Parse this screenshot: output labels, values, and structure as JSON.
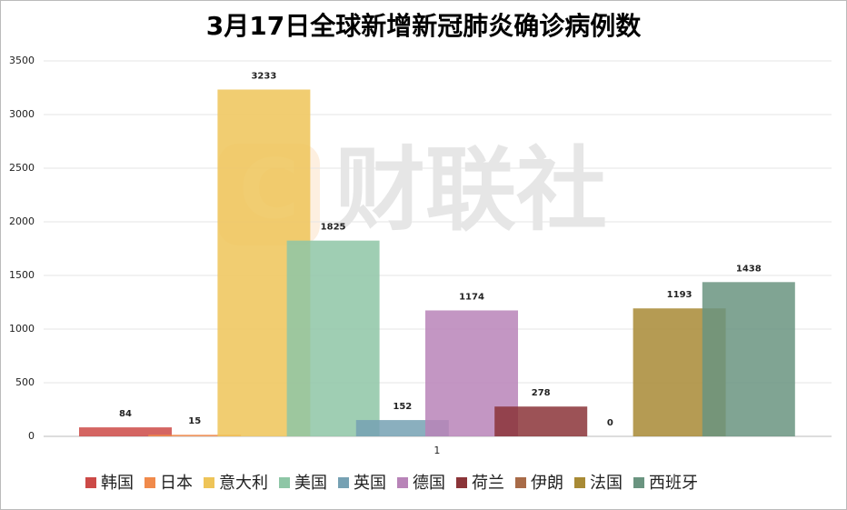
{
  "chart_data": {
    "type": "bar",
    "title": "3月17日全球新增新冠肺炎确诊病例数",
    "watermark_logo": "C",
    "watermark": "财联社",
    "categories": [
      "1"
    ],
    "ylim": [
      0,
      3500
    ],
    "yticks": [
      0,
      500,
      1000,
      1500,
      2000,
      2500,
      3000,
      3500
    ],
    "grid": true,
    "series": [
      {
        "name": "韩国",
        "color": "#cc4a47",
        "values": [
          84
        ]
      },
      {
        "name": "日本",
        "color": "#f08a4b",
        "values": [
          15
        ]
      },
      {
        "name": "意大利",
        "color": "#eec458",
        "values": [
          3233
        ]
      },
      {
        "name": "美国",
        "color": "#8ec6a6",
        "values": [
          1825
        ]
      },
      {
        "name": "英国",
        "color": "#76a1b3",
        "values": [
          152
        ]
      },
      {
        "name": "德国",
        "color": "#b884b8",
        "values": [
          1174
        ]
      },
      {
        "name": "荷兰",
        "color": "#8b3438",
        "values": [
          278
        ]
      },
      {
        "name": "伊朗",
        "color": "#a86b48",
        "values": [
          0
        ]
      },
      {
        "name": "法国",
        "color": "#a88a35",
        "values": [
          1193
        ]
      },
      {
        "name": "西班牙",
        "color": "#6a9480",
        "values": [
          1438
        ]
      }
    ]
  }
}
